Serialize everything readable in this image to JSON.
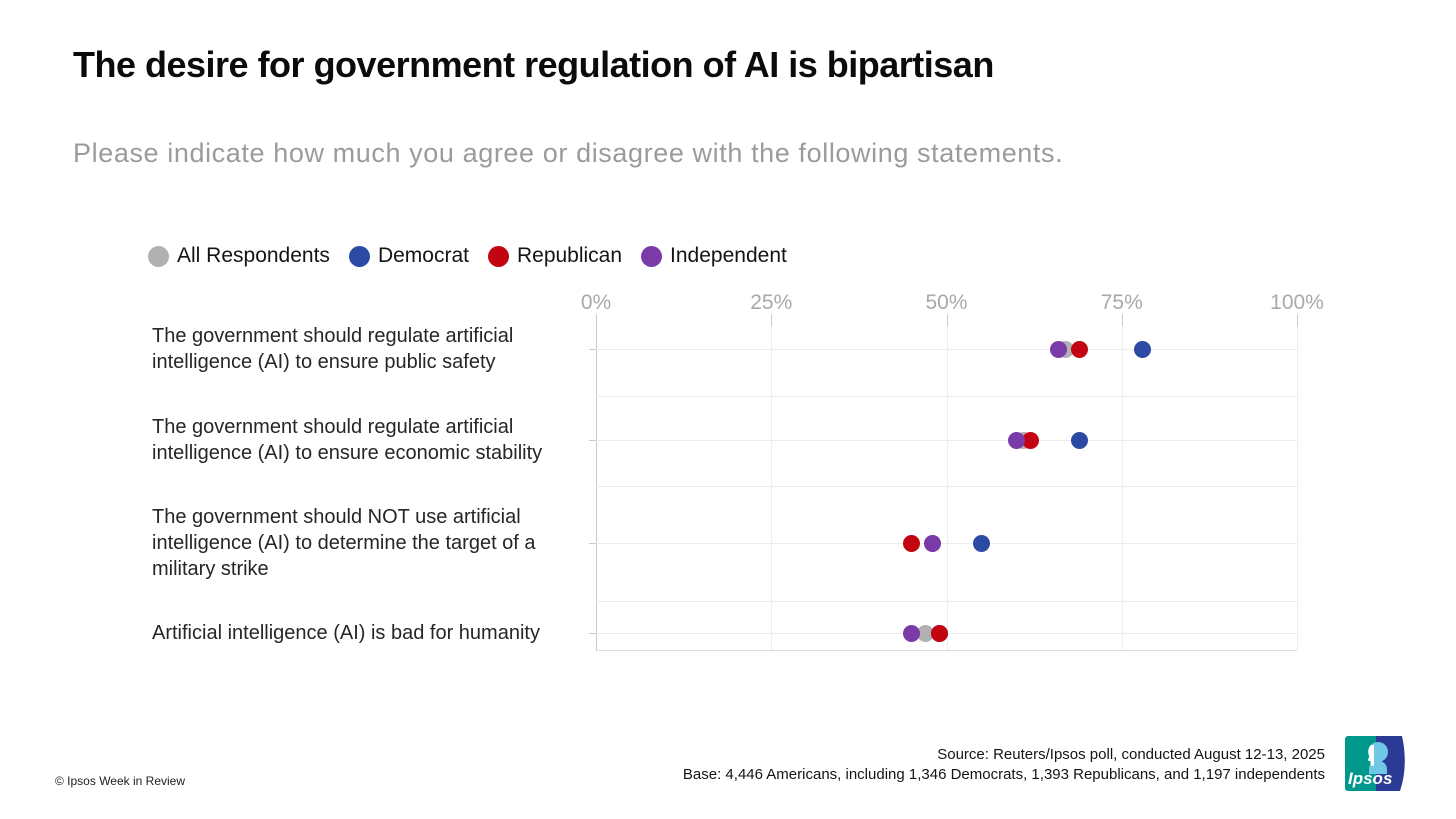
{
  "title": "The desire for government regulation of AI is bipartisan",
  "subtitle": "Please indicate how much you agree or disagree with the following statements.",
  "footer": {
    "source_line": "Source: Reuters/Ipsos poll, conducted August 12-13, 2025",
    "base_line": "Base: 4,446 Americans, including 1,346 Democrats, 1,393 Republicans, and 1,197 independents",
    "copyright": "© Ipsos Week in Review",
    "logo_text": "Ipsos"
  },
  "colors": {
    "all_respondents": "#b2b0b3",
    "democrat": "#2b4aa3",
    "republican": "#c20511",
    "independent": "#7a3aa8"
  },
  "chart_data": {
    "type": "scatter",
    "subtype": "horizontal-dot-plot",
    "title": "The desire for government regulation of AI is bipartisan",
    "xlabel": "",
    "ylabel": "",
    "xlim": [
      0,
      100
    ],
    "xtick_values": [
      0,
      25,
      50,
      75,
      100
    ],
    "xtick_labels": [
      "0%",
      "25%",
      "50%",
      "75%",
      "100%"
    ],
    "grid": true,
    "legend_position": "top-left",
    "categories": [
      "The government should regulate artificial intelligence (AI) to ensure public safety",
      "The government should regulate artificial intelligence (AI) to ensure economic stability",
      "The government should NOT use artificial intelligence (AI) to determine the target of a military strike",
      "Artificial intelligence (AI) is bad for humanity"
    ],
    "series": [
      {
        "name": "All Respondents",
        "color": "#b2b0b3",
        "values": [
          67,
          61,
          48,
          47
        ]
      },
      {
        "name": "Democrat",
        "color": "#2b4aa3",
        "values": [
          78,
          69,
          55,
          49
        ]
      },
      {
        "name": "Republican",
        "color": "#c20511",
        "values": [
          69,
          62,
          45,
          49
        ]
      },
      {
        "name": "Independent",
        "color": "#7a3aa8",
        "values": [
          66,
          60,
          48,
          45
        ]
      }
    ]
  }
}
